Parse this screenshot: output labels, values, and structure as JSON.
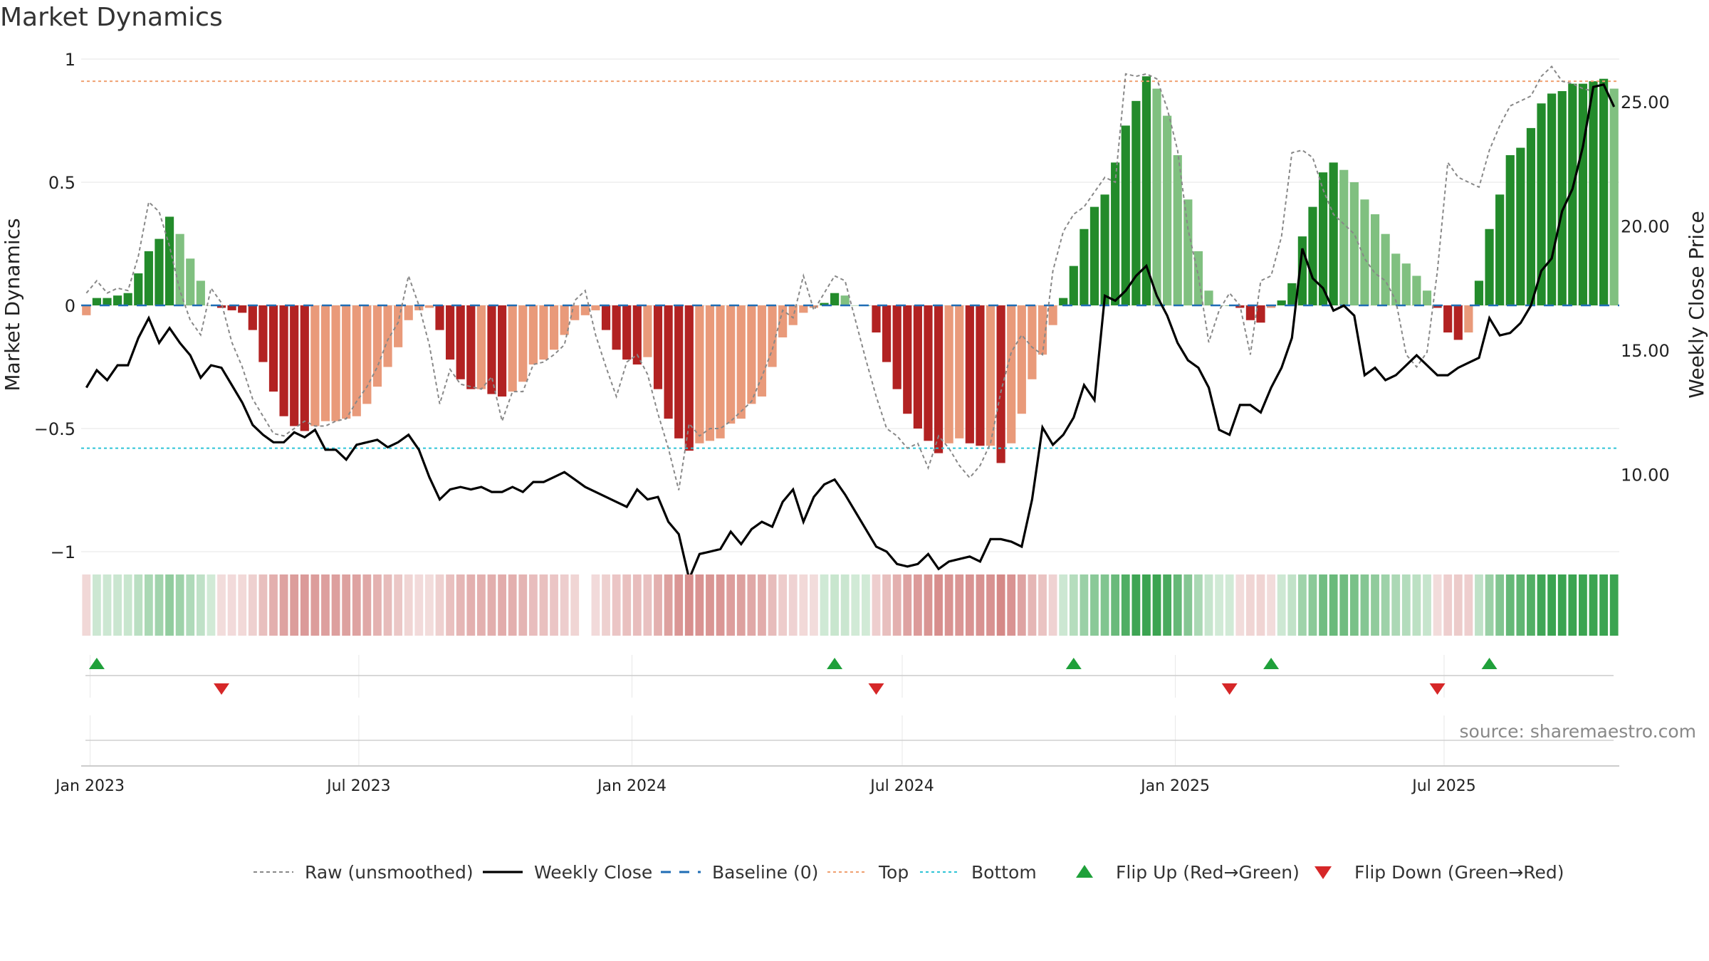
{
  "title": "Market Dynamics",
  "source_text": "source: sharemaestro.com",
  "colors": {
    "strong_green": "#238b2b",
    "light_green": "#80c080",
    "strong_red": "#b22222",
    "light_red": "#e99a7a",
    "raw": "#888888",
    "close": "#000000",
    "baseline": "#1f6db5",
    "top": "#f0a070",
    "bottom": "#2ec4d6",
    "flip_up": "#1fa03a",
    "flip_down": "#d62728"
  },
  "chart_data": {
    "type": "bar",
    "title": "Market Dynamics",
    "ylabel_left": "Market Dynamics",
    "ylabel_right": "Weekly Close Price",
    "ylim_left": [
      -1.1,
      1.1
    ],
    "ylim_right": [
      6.5,
      27.0
    ],
    "yticks_left": [
      {
        "value": 1,
        "label": "1"
      },
      {
        "value": 0.5,
        "label": "0.5"
      },
      {
        "value": 0,
        "label": "0"
      },
      {
        "value": -0.5,
        "label": "−0.5"
      },
      {
        "value": -1,
        "label": "−1"
      }
    ],
    "yticks_right": [
      {
        "value": 25,
        "label": "25.00"
      },
      {
        "value": 20,
        "label": "20.00"
      },
      {
        "value": 15,
        "label": "15.00"
      },
      {
        "value": 10,
        "label": "10.00"
      }
    ],
    "xticks": [
      "Jan 2023",
      "Jul 2023",
      "Jan 2024",
      "Jul 2024",
      "Jan 2025",
      "Jul 2025"
    ],
    "top_line": 0.91,
    "bottom_line": -0.58,
    "weeks": 148,
    "dynamics": [
      -0.04,
      0.03,
      0.03,
      0.04,
      0.05,
      0.13,
      0.22,
      0.27,
      0.36,
      0.29,
      0.19,
      0.1,
      0.0,
      -0.01,
      -0.02,
      -0.03,
      -0.1,
      -0.23,
      -0.35,
      -0.45,
      -0.49,
      -0.51,
      -0.49,
      -0.47,
      -0.47,
      -0.46,
      -0.45,
      -0.4,
      -0.33,
      -0.25,
      -0.17,
      -0.06,
      -0.02,
      -0.01,
      -0.1,
      -0.22,
      -0.3,
      -0.34,
      -0.34,
      -0.36,
      -0.37,
      -0.35,
      -0.31,
      -0.24,
      -0.22,
      -0.18,
      -0.12,
      -0.06,
      -0.04,
      -0.02,
      -0.1,
      -0.18,
      -0.22,
      -0.24,
      -0.21,
      -0.34,
      -0.46,
      -0.54,
      -0.59,
      -0.56,
      -0.55,
      -0.54,
      -0.48,
      -0.46,
      -0.4,
      -0.37,
      -0.25,
      -0.13,
      -0.08,
      -0.03,
      -0.01,
      0.01,
      0.05,
      0.04,
      0.0,
      0.0,
      -0.11,
      -0.23,
      -0.34,
      -0.44,
      -0.5,
      -0.55,
      -0.6,
      -0.56,
      -0.54,
      -0.56,
      -0.57,
      -0.57,
      -0.64,
      -0.56,
      -0.44,
      -0.3,
      -0.2,
      -0.08,
      0.03,
      0.16,
      0.31,
      0.4,
      0.45,
      0.58,
      0.73,
      0.83,
      0.93,
      0.88,
      0.77,
      0.61,
      0.43,
      0.22,
      0.06,
      0.0,
      0.0,
      -0.01,
      -0.06,
      -0.07,
      -0.01,
      0.02,
      0.09,
      0.28,
      0.4,
      0.54,
      0.58,
      0.55,
      0.5,
      0.43,
      0.37,
      0.29,
      0.21,
      0.17,
      0.12,
      0.06,
      -0.01,
      -0.11,
      -0.14,
      -0.11,
      0.1,
      0.31,
      0.45,
      0.61,
      0.64,
      0.72,
      0.82,
      0.86,
      0.87,
      0.9,
      0.9,
      0.91,
      0.92,
      0.88
    ],
    "raw": [
      0.05,
      0.1,
      0.05,
      0.07,
      0.06,
      0.2,
      0.42,
      0.38,
      0.24,
      0.06,
      -0.06,
      -0.12,
      0.07,
      0.01,
      -0.15,
      -0.25,
      -0.38,
      -0.45,
      -0.52,
      -0.53,
      -0.5,
      -0.47,
      -0.49,
      -0.49,
      -0.47,
      -0.46,
      -0.39,
      -0.33,
      -0.25,
      -0.14,
      -0.07,
      0.12,
      0.0,
      -0.16,
      -0.4,
      -0.26,
      -0.32,
      -0.33,
      -0.34,
      -0.29,
      -0.47,
      -0.35,
      -0.35,
      -0.24,
      -0.23,
      -0.2,
      -0.16,
      0.02,
      0.06,
      -0.12,
      -0.25,
      -0.37,
      -0.23,
      -0.2,
      -0.28,
      -0.44,
      -0.58,
      -0.75,
      -0.48,
      -0.53,
      -0.5,
      -0.5,
      -0.47,
      -0.43,
      -0.39,
      -0.29,
      -0.18,
      -0.02,
      -0.05,
      0.12,
      -0.02,
      0.05,
      0.12,
      0.1,
      -0.06,
      -0.22,
      -0.37,
      -0.5,
      -0.53,
      -0.58,
      -0.56,
      -0.66,
      -0.53,
      -0.58,
      -0.65,
      -0.7,
      -0.65,
      -0.56,
      -0.35,
      -0.19,
      -0.12,
      -0.17,
      -0.2,
      0.14,
      0.3,
      0.37,
      0.4,
      0.46,
      0.52,
      0.5,
      0.94,
      0.93,
      0.94,
      0.92,
      0.8,
      0.63,
      0.31,
      0.12,
      -0.15,
      -0.02,
      0.05,
      0.0,
      -0.2,
      0.1,
      0.12,
      0.28,
      0.62,
      0.63,
      0.6,
      0.47,
      0.37,
      0.33,
      0.29,
      0.19,
      0.13,
      0.1,
      0.02,
      -0.2,
      -0.25,
      -0.19,
      0.14,
      0.58,
      0.52,
      0.5,
      0.48,
      0.63,
      0.73,
      0.81,
      0.83,
      0.85,
      0.93,
      0.97,
      0.91,
      0.9,
      0.88,
      0.87
    ],
    "close": [
      13.5,
      14.2,
      13.8,
      14.4,
      14.4,
      15.5,
      16.3,
      15.3,
      15.9,
      15.3,
      14.8,
      13.9,
      14.4,
      14.3,
      13.6,
      12.9,
      12.0,
      11.6,
      11.3,
      11.3,
      11.7,
      11.5,
      11.8,
      11.0,
      11.0,
      10.6,
      11.2,
      11.3,
      11.4,
      11.1,
      11.3,
      11.6,
      11.0,
      9.9,
      9.0,
      9.4,
      9.5,
      9.4,
      9.5,
      9.3,
      9.3,
      9.5,
      9.3,
      9.7,
      9.7,
      9.9,
      10.1,
      9.8,
      9.5,
      9.3,
      9.1,
      8.9,
      8.7,
      9.4,
      9.0,
      9.1,
      8.1,
      7.6,
      5.8,
      6.8,
      6.9,
      7.0,
      7.7,
      7.2,
      7.8,
      8.1,
      7.9,
      8.9,
      9.4,
      8.1,
      9.1,
      9.6,
      9.8,
      9.2,
      8.5,
      7.8,
      7.1,
      6.9,
      6.4,
      6.3,
      6.4,
      6.8,
      6.2,
      6.5,
      6.6,
      6.7,
      6.5,
      7.4,
      7.4,
      7.3,
      7.1,
      9.0,
      11.9,
      11.2,
      11.6,
      12.3,
      13.6,
      13.0,
      17.2,
      17.0,
      17.4,
      18.0,
      18.4,
      17.2,
      16.4,
      15.3,
      14.6,
      14.3,
      13.5,
      11.8,
      11.6,
      12.8,
      12.8,
      12.5,
      13.5,
      14.3,
      15.5,
      19.1,
      17.9,
      17.5,
      16.6,
      16.8,
      16.4,
      14.0,
      14.3,
      13.8,
      14.0,
      14.4,
      14.8,
      14.4,
      14.0,
      14.0,
      14.3,
      14.5,
      14.7,
      16.3,
      15.6,
      15.7,
      16.1,
      16.8,
      18.2,
      18.7,
      20.6,
      21.5,
      23.2,
      25.6,
      25.7,
      24.8
    ],
    "flip_up_weeks": [
      1,
      72,
      95,
      114,
      135
    ],
    "flip_down_weeks": [
      13,
      76,
      110,
      130
    ],
    "legend": [
      {
        "label": "Raw (unsmoothed)",
        "style": "raw"
      },
      {
        "label": "Weekly Close",
        "style": "close"
      },
      {
        "label": "Baseline (0)",
        "style": "baseline"
      },
      {
        "label": "Top",
        "style": "top"
      },
      {
        "label": "Bottom",
        "style": "bottom"
      },
      {
        "label": "Flip Up (Red→Green)",
        "style": "flip_up"
      },
      {
        "label": "Flip Down (Green→Red)",
        "style": "flip_down"
      }
    ],
    "legend_placement": "bottom-center",
    "grid": true
  }
}
